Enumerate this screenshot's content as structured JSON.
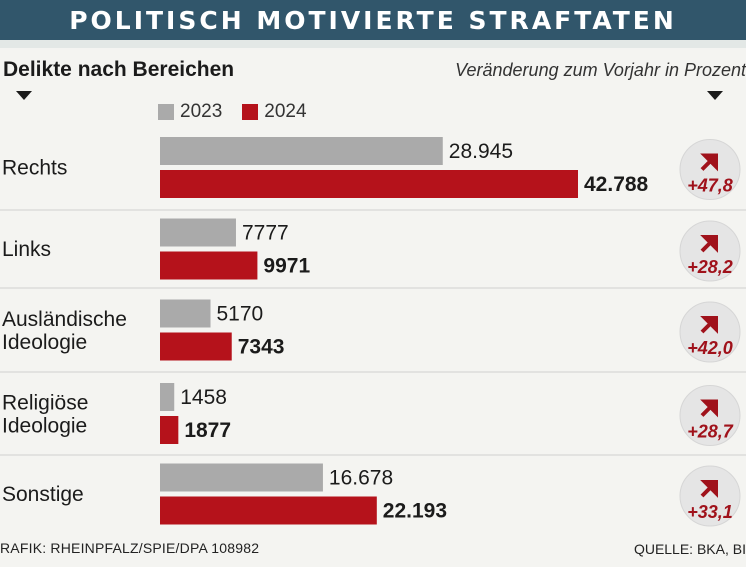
{
  "title": "POLITISCH MOTIVIERTE STRAFTATEN",
  "left_header": "Delikte nach Bereichen",
  "right_header": "Veränderung zum Vorjahr in Prozent",
  "footer": {
    "source": "RAFIK: RHEINPFALZ/SPIE/DPA 108982",
    "credit": "QUELLE: BKA, BI"
  },
  "colors": {
    "title_bg": "#31566b",
    "series_2023": "#aaaaaa",
    "series_2024": "#b5121b",
    "circle_bg": "#e5e5e5",
    "change_text": "#a0121b"
  },
  "chart_data": {
    "type": "bar",
    "orientation": "horizontal",
    "legend_placement": "top",
    "grid": false,
    "categories": [
      [
        "Rechts"
      ],
      [
        "Links"
      ],
      [
        "Ausländische",
        "Ideologie"
      ],
      [
        "Religiöse",
        "Ideologie"
      ],
      [
        "Sonstige"
      ]
    ],
    "series": [
      {
        "name": "2023",
        "values": [
          28945,
          7777,
          5170,
          1458,
          16678
        ],
        "labels": [
          "28.945",
          "7777",
          "5170",
          "1458",
          "16.678"
        ]
      },
      {
        "name": "2024",
        "values": [
          42788,
          9971,
          7343,
          1877,
          22193
        ],
        "labels": [
          "42.788",
          "9971",
          "7343",
          "1877",
          "22.193"
        ]
      }
    ],
    "change_percent": [
      47.8,
      28.2,
      42.0,
      28.7,
      33.1
    ],
    "change_labels": [
      "+47,8",
      "+28,2",
      "+42,0",
      "+28,7",
      "+33,1"
    ],
    "change_icon": "arrow-up-right-icon"
  }
}
